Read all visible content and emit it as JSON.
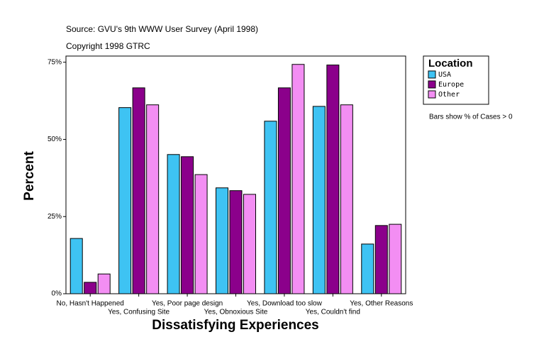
{
  "chart_data": {
    "type": "bar",
    "subtitle": "Source: GVU's 9th WWW User Survey (April 1998)",
    "copyright": "Copyright 1998 GTRC",
    "x_label": "Dissatisfying Experiences",
    "y_label": "Percent",
    "legend_title": "Location",
    "note": "Bars show % of Cases > 0",
    "categories": [
      "No, Hasn't Happened",
      "Yes, Confusing Site",
      "Yes, Poor page design",
      "Yes, Obnoxious Site",
      "Yes, Download too slow",
      "Yes, Couldn't find",
      "Yes, Other Reasons"
    ],
    "series": [
      {
        "name": "USA",
        "color": "#3ec3f3",
        "values": [
          17.9,
          60.3,
          45.1,
          34.3,
          55.9,
          60.7,
          16.1
        ]
      },
      {
        "name": "Europe",
        "color": "#8b008b",
        "values": [
          3.7,
          66.7,
          44.4,
          33.4,
          66.7,
          74.1,
          22.1
        ]
      },
      {
        "name": "Other",
        "color": "#f38ef3",
        "values": [
          6.4,
          61.2,
          38.6,
          32.2,
          74.3,
          61.2,
          22.5
        ]
      }
    ],
    "ylim": [
      0,
      77
    ],
    "yticks": [
      {
        "value": 0,
        "label": "0%"
      },
      {
        "value": 25,
        "label": "25%"
      },
      {
        "value": 50,
        "label": "50%"
      },
      {
        "value": 75,
        "label": "75%"
      }
    ],
    "grid": false,
    "legend": "top-right"
  }
}
